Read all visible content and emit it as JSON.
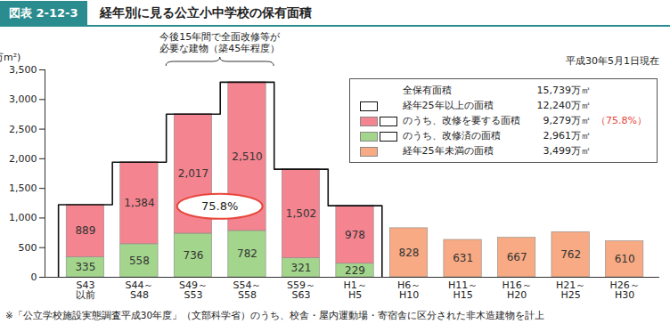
{
  "chart_data": {
    "type": "bar",
    "figure_number": "図表 2-12-3",
    "title": "経年別に見る公立小中学校の保有面積",
    "note": "平成30年5月1日現在",
    "caption": "※「公立学校施設実態調査平成30年度」（文部科学省）のうち、校舎・屋内運動場・寄宿舎に区分された非木造建物を計上",
    "y_label": "(万m²)",
    "categories": [
      "S43\n以前",
      "S44～\nS48",
      "S49～\nS53",
      "S54～\nS58",
      "S59～\nS63",
      "H1～\nH5",
      "H6～\nH10",
      "H11～\nH15",
      "H16～\nH20",
      "H21～\nH25",
      "H26～\nH30"
    ],
    "series": [
      {
        "name": "のうち、改修済の面積",
        "color": "#a3d68c",
        "total": "2,961万㎡",
        "values": [
          335,
          558,
          736,
          782,
          321,
          229,
          null,
          null,
          null,
          null,
          null
        ]
      },
      {
        "name": "のうち、改修を要する面積",
        "color": "#f4848f",
        "total": "9,279万㎡",
        "share": "（75.8%）",
        "values": [
          889,
          1384,
          2017,
          2510,
          1502,
          978,
          null,
          null,
          null,
          null,
          null
        ],
        "value_labels": [
          "889",
          "1,384",
          "2,017",
          "2,510",
          "1,502",
          "978",
          null,
          null,
          null,
          null,
          null
        ]
      },
      {
        "name": "経年25年未満の面積",
        "color": "#f7aa83",
        "total": "3,499万㎡",
        "values": [
          null,
          null,
          null,
          null,
          null,
          null,
          828,
          631,
          667,
          762,
          610
        ]
      }
    ],
    "outline": {
      "name": "経年25年以上の面積",
      "total": "12,240万㎡",
      "series": [
        "のうち、改修を要する面積",
        "のうち、改修済の面積"
      ]
    },
    "grand_total": {
      "name": "全保有面積",
      "total": "15,739万㎡"
    },
    "annotations": [
      {
        "text": "今後15年間で全面改修等が\n必要な建物（築45年程度）"
      },
      {
        "text": "75.8%"
      }
    ],
    "ylim": [
      0,
      3500
    ],
    "yticks": [
      0,
      500,
      {
        "value": 1000,
        "label": "1,000"
      },
      {
        "value": 1500,
        "label": "1,500"
      },
      {
        "value": 2000,
        "label": "2,000"
      },
      {
        "value": 2500,
        "label": "2,500"
      },
      {
        "value": 3000,
        "label": "3,000"
      },
      {
        "value": 3500,
        "label": "3,500"
      }
    ],
    "stacked": true,
    "data_labels": true,
    "grid": false,
    "legend": "top-right"
  }
}
